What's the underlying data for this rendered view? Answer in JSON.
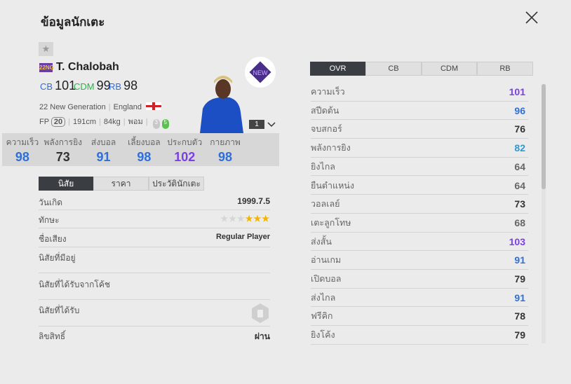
{
  "title": "ข้อมูลนักเตะ",
  "player": {
    "season_badge": "22NG",
    "name": "T. Chalobah",
    "positions": [
      {
        "pos": "CB",
        "ovr": "101",
        "color": "#2f6fd8"
      },
      {
        "pos": "CDM",
        "ovr": "99",
        "color": "#2bb34a"
      },
      {
        "pos": "RB",
        "ovr": "98",
        "color": "#2f6fd8"
      }
    ],
    "season": "22 New Generation",
    "nation": "England",
    "fp_label": "FP",
    "fp": "20",
    "height": "191cm",
    "weight": "84kg",
    "foot": "พอม",
    "weak_foot": "3",
    "strong_foot": "5",
    "level": "1"
  },
  "summary_stats": [
    {
      "label": "ความเร็ว",
      "value": "98",
      "color": "#2f6fd8"
    },
    {
      "label": "พลังการยิง",
      "value": "73",
      "color": "#333333"
    },
    {
      "label": "ส่งบอล",
      "value": "91",
      "color": "#2f6fd8"
    },
    {
      "label": "เลี้ยงบอล",
      "value": "98",
      "color": "#2f6fd8"
    },
    {
      "label": "ประกบตัว",
      "value": "102",
      "color": "#7b3fe4"
    },
    {
      "label": "กายภาพ",
      "value": "98",
      "color": "#2f6fd8"
    }
  ],
  "info_tabs": [
    "นิสัย",
    "ราคา",
    "ประวัตินักเตะ"
  ],
  "info": {
    "birth_label": "วันเกิด",
    "birth": "1999.7.5",
    "skill_label": "ทักษะ",
    "skill_stars": 3,
    "skill_max": 6,
    "rep_label": "ชื่อเสียง",
    "rep": "Regular Player",
    "traits_label": "นิสัยที่มีอยู่",
    "coach_traits_label": "นิสัยที่ได้รับจากโค้ช",
    "gained_traits_label": "นิสัยที่ได้รับ",
    "license_label": "ลิขสิทธิ์",
    "license": "ผ่าน"
  },
  "stat_tabs": [
    "OVR",
    "CB",
    "CDM",
    "RB"
  ],
  "stats": [
    {
      "label": "ความเร็ว",
      "value": "101",
      "color": "#7b3fe4"
    },
    {
      "label": "สปีดต้น",
      "value": "96",
      "color": "#2f6fd8"
    },
    {
      "label": "จบสกอร์",
      "value": "76",
      "color": "#333333"
    },
    {
      "label": "พลังการยิง",
      "value": "82",
      "color": "#2a9ad6"
    },
    {
      "label": "ยิงไกล",
      "value": "64",
      "color": "#666666"
    },
    {
      "label": "ยืนตำแหน่ง",
      "value": "64",
      "color": "#666666"
    },
    {
      "label": "วอลเลย์",
      "value": "73",
      "color": "#333333"
    },
    {
      "label": "เตะลูกโทษ",
      "value": "68",
      "color": "#666666"
    },
    {
      "label": "ส่งสั้น",
      "value": "103",
      "color": "#7b3fe4"
    },
    {
      "label": "อ่านเกม",
      "value": "91",
      "color": "#2f6fd8"
    },
    {
      "label": "เปิดบอล",
      "value": "79",
      "color": "#333333"
    },
    {
      "label": "ส่งไกล",
      "value": "91",
      "color": "#2f6fd8"
    },
    {
      "label": "ฟรีคิก",
      "value": "78",
      "color": "#333333"
    },
    {
      "label": "ยิงโค้ง",
      "value": "79",
      "color": "#333333"
    }
  ]
}
